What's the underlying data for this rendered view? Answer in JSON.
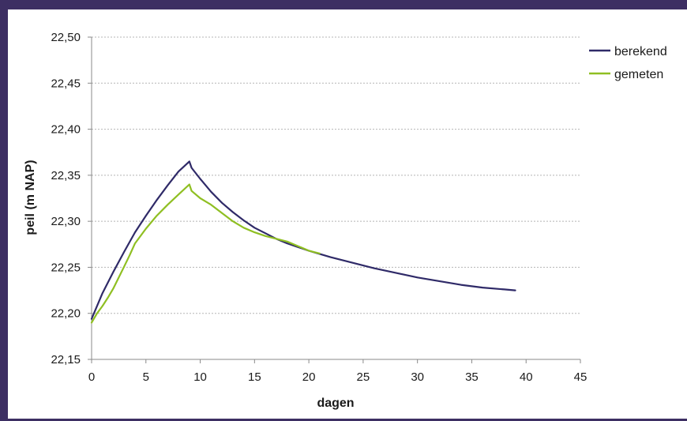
{
  "chart_data": {
    "type": "line",
    "title": "",
    "xlabel": "dagen",
    "ylabel": "peil (m NAP)",
    "xlim": [
      0,
      45
    ],
    "ylim": [
      22.15,
      22.5
    ],
    "x_ticks": [
      0,
      5,
      10,
      15,
      20,
      25,
      30,
      35,
      40,
      45
    ],
    "x_tick_labels": [
      "0",
      "5",
      "10",
      "15",
      "20",
      "25",
      "30",
      "35",
      "40",
      "45"
    ],
    "y_ticks": [
      22.15,
      22.2,
      22.25,
      22.3,
      22.35,
      22.4,
      22.45,
      22.5
    ],
    "y_tick_labels": [
      "22,15",
      "22,20",
      "22,25",
      "22,30",
      "22,35",
      "22,40",
      "22,45",
      "22,50"
    ],
    "grid": "horizontal dotted",
    "legend_position": "top-right",
    "series": [
      {
        "name": "berekend",
        "color": "#2f2a68",
        "x": [
          0,
          1,
          2,
          3,
          4,
          5,
          6,
          7,
          8,
          9,
          9.2,
          10,
          11,
          12,
          13,
          14,
          15,
          16,
          17,
          18,
          19,
          20,
          22,
          24,
          26,
          28,
          30,
          32,
          34,
          36,
          38,
          39
        ],
        "y": [
          22.194,
          22.222,
          22.245,
          22.267,
          22.288,
          22.306,
          22.323,
          22.339,
          22.354,
          22.365,
          22.358,
          22.346,
          22.332,
          22.32,
          22.31,
          22.301,
          22.293,
          22.287,
          22.281,
          22.276,
          22.272,
          22.268,
          22.261,
          22.255,
          22.249,
          22.244,
          22.239,
          22.235,
          22.231,
          22.228,
          22.226,
          22.225
        ]
      },
      {
        "name": "gemeten",
        "color": "#8fbf22",
        "x": [
          0,
          0.5,
          1,
          1.5,
          2,
          2.5,
          3,
          3.5,
          4,
          5,
          6,
          7,
          8,
          9,
          9.2,
          10,
          11,
          12,
          13,
          14,
          15,
          16,
          17,
          18,
          19,
          20,
          21
        ],
        "y": [
          22.19,
          22.2,
          22.208,
          22.217,
          22.227,
          22.239,
          22.251,
          22.263,
          22.276,
          22.292,
          22.306,
          22.318,
          22.329,
          22.34,
          22.333,
          22.325,
          22.318,
          22.309,
          22.3,
          22.293,
          22.288,
          22.284,
          22.281,
          22.278,
          22.273,
          22.268,
          22.265
        ]
      }
    ]
  }
}
